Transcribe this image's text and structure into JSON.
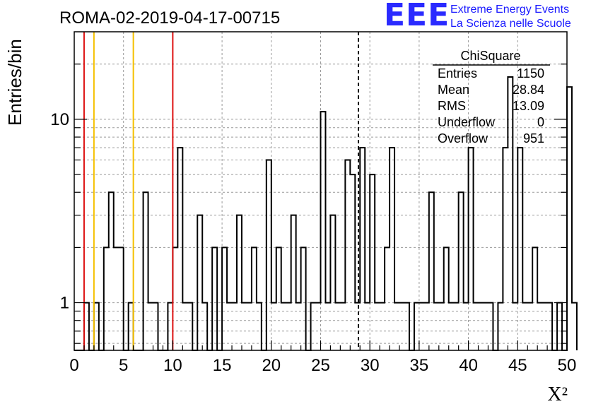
{
  "chart_data": {
    "type": "bar",
    "title": "ROMA-02-2019-04-17-00715",
    "xlabel": "X²",
    "ylabel": "Entries/bin",
    "xlim": [
      0,
      50
    ],
    "ylim": [
      0.55,
      30
    ],
    "log_y": true,
    "grid": true,
    "x_ticks": [
      "0",
      "5",
      "10",
      "15",
      "20",
      "25",
      "30",
      "35",
      "40",
      "45",
      "50"
    ],
    "y_ticks": [
      "1",
      "10"
    ],
    "bin_width": 0.5,
    "bin_start": 0,
    "values": [
      0,
      0,
      1,
      0,
      1,
      0,
      2,
      4,
      2,
      2,
      0,
      1,
      0,
      0,
      4,
      1,
      1,
      0,
      0,
      1,
      2,
      7,
      1,
      1,
      0,
      3,
      1,
      0,
      2,
      0,
      2,
      1,
      1,
      3,
      1,
      1,
      2,
      1,
      0,
      6,
      1,
      2,
      1,
      1,
      3,
      1,
      2,
      0,
      1,
      1,
      11,
      1,
      3,
      1,
      1,
      6,
      5,
      1,
      7,
      1,
      5,
      1,
      1,
      2,
      7,
      1,
      1,
      1,
      0,
      1,
      1,
      1,
      4,
      1,
      1,
      2,
      1,
      1,
      4,
      1,
      7,
      1,
      1,
      1,
      1,
      0,
      1,
      7,
      17,
      1,
      7,
      1,
      1,
      2,
      1,
      1,
      1,
      0,
      1,
      0,
      15,
      1
    ],
    "stats_box": {
      "title": "ChiSquare",
      "rows": [
        {
          "label": "Entries",
          "value": "1150"
        },
        {
          "label": "Mean",
          "value": "28.84"
        },
        {
          "label": "RMS",
          "value": "13.09"
        },
        {
          "label": "Underflow",
          "value": "0"
        },
        {
          "label": "Overflow",
          "value": "951"
        }
      ]
    },
    "vertical_lines": [
      {
        "x": 1,
        "color": "#dd1111",
        "style": "solid"
      },
      {
        "x": 2,
        "color": "#f5c000",
        "style": "solid"
      },
      {
        "x": 6,
        "color": "#f5c000",
        "style": "solid"
      },
      {
        "x": 10,
        "color": "#dd1111",
        "style": "solid"
      },
      {
        "x": 28.84,
        "color": "#000000",
        "style": "dashed"
      }
    ]
  },
  "logo": {
    "mark": "EEE",
    "line1": "Extreme Energy Events",
    "line2": "La Scienza nelle Scuole",
    "color": "#1a1aff"
  }
}
